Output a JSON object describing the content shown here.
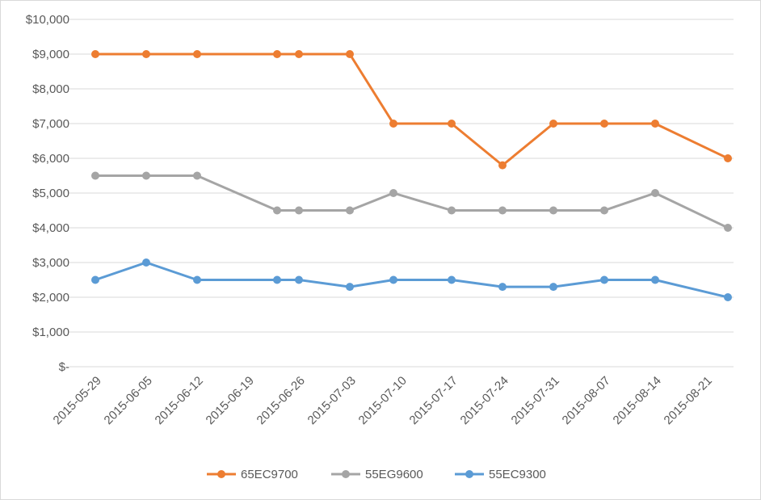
{
  "chart_data": {
    "type": "line",
    "title": "",
    "xlabel": "",
    "ylabel": "",
    "x": [
      "2015-05-29",
      "2015-06-05",
      "2015-06-12",
      "2015-06-19",
      "2015-06-26",
      "2015-07-03",
      "2015-07-10",
      "2015-07-17",
      "2015-07-24",
      "2015-07-31",
      "2015-08-07",
      "2015-08-14",
      "2015-08-21"
    ],
    "y_ticks": [
      "$-",
      "$1,000",
      "$2,000",
      "$3,000",
      "$4,000",
      "$5,000",
      "$6,000",
      "$7,000",
      "$8,000",
      "$9,000",
      "$10,000"
    ],
    "ylim": [
      0,
      10000
    ],
    "grid": true,
    "legend_position": "bottom",
    "series": [
      {
        "name": "65EC9700",
        "color": "#ed7d31",
        "points": [
          {
            "x": "2015-05-29",
            "y": 9000
          },
          {
            "x": "2015-06-05",
            "y": 9000
          },
          {
            "x": "2015-06-12",
            "y": 9000
          },
          {
            "x": "2015-06-23",
            "y": 9000
          },
          {
            "x": "2015-06-26",
            "y": 9000
          },
          {
            "x": "2015-07-03",
            "y": 9000
          },
          {
            "x": "2015-07-09",
            "y": 7000
          },
          {
            "x": "2015-07-17",
            "y": 7000
          },
          {
            "x": "2015-07-24",
            "y": 5800
          },
          {
            "x": "2015-07-31",
            "y": 7000
          },
          {
            "x": "2015-08-07",
            "y": 7000
          },
          {
            "x": "2015-08-14",
            "y": 7000
          },
          {
            "x": "2015-08-24",
            "y": 6000
          }
        ]
      },
      {
        "name": "55EG9600",
        "color": "#a5a5a5",
        "points": [
          {
            "x": "2015-05-29",
            "y": 5500
          },
          {
            "x": "2015-06-05",
            "y": 5500
          },
          {
            "x": "2015-06-12",
            "y": 5500
          },
          {
            "x": "2015-06-23",
            "y": 4500
          },
          {
            "x": "2015-06-26",
            "y": 4500
          },
          {
            "x": "2015-07-03",
            "y": 4500
          },
          {
            "x": "2015-07-09",
            "y": 5000
          },
          {
            "x": "2015-07-17",
            "y": 4500
          },
          {
            "x": "2015-07-24",
            "y": 4500
          },
          {
            "x": "2015-07-31",
            "y": 4500
          },
          {
            "x": "2015-08-07",
            "y": 4500
          },
          {
            "x": "2015-08-14",
            "y": 5000
          },
          {
            "x": "2015-08-24",
            "y": 4000
          }
        ]
      },
      {
        "name": "55EC9300",
        "color": "#5b9bd5",
        "points": [
          {
            "x": "2015-05-29",
            "y": 2500
          },
          {
            "x": "2015-06-05",
            "y": 3000
          },
          {
            "x": "2015-06-12",
            "y": 2500
          },
          {
            "x": "2015-06-23",
            "y": 2500
          },
          {
            "x": "2015-06-26",
            "y": 2500
          },
          {
            "x": "2015-07-03",
            "y": 2300
          },
          {
            "x": "2015-07-09",
            "y": 2500
          },
          {
            "x": "2015-07-17",
            "y": 2500
          },
          {
            "x": "2015-07-24",
            "y": 2300
          },
          {
            "x": "2015-07-31",
            "y": 2300
          },
          {
            "x": "2015-08-07",
            "y": 2500
          },
          {
            "x": "2015-08-14",
            "y": 2500
          },
          {
            "x": "2015-08-24",
            "y": 2000
          }
        ]
      }
    ]
  }
}
